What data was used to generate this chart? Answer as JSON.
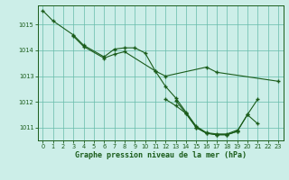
{
  "title": "Graphe pression niveau de la mer (hPa)",
  "bg_color": "#cceee8",
  "line_color": "#1a5c1a",
  "grid_color": "#66bbaa",
  "xlim": [
    -0.5,
    23.5
  ],
  "ylim": [
    1010.5,
    1015.75
  ],
  "yticks": [
    1011,
    1012,
    1013,
    1014,
    1015
  ],
  "xticks": [
    0,
    1,
    2,
    3,
    4,
    5,
    6,
    7,
    8,
    9,
    10,
    11,
    12,
    13,
    14,
    15,
    16,
    17,
    18,
    19,
    20,
    21,
    22,
    23
  ],
  "s1_x": [
    0,
    1,
    3,
    4,
    6,
    7,
    8,
    9,
    10,
    11,
    12,
    16,
    17,
    23
  ],
  "s1_y": [
    1015.55,
    1015.15,
    1014.6,
    1014.2,
    1013.75,
    1014.05,
    1014.1,
    1014.1,
    1013.9,
    1013.2,
    1013.0,
    1013.35,
    1013.15,
    1012.8
  ],
  "s2_x": [
    3,
    4,
    6,
    7,
    8,
    11,
    12,
    13,
    14,
    15,
    16,
    17,
    18,
    19
  ],
  "s2_y": [
    1014.55,
    1014.15,
    1013.7,
    1013.85,
    1013.95,
    1013.2,
    1012.6,
    1012.15,
    1011.6,
    1011.05,
    1010.8,
    1010.75,
    1010.75,
    1010.9
  ],
  "s3_x": [
    12,
    13,
    14,
    15,
    16,
    17,
    18,
    19,
    20,
    21
  ],
  "s3_y": [
    1012.1,
    1011.85,
    1011.55,
    1011.0,
    1010.78,
    1010.72,
    1010.72,
    1010.85,
    1011.5,
    1011.15
  ],
  "s4_x": [
    13,
    14,
    15,
    16,
    17,
    18,
    19,
    20,
    21
  ],
  "s4_y": [
    1012.05,
    1011.55,
    1011.0,
    1010.78,
    1010.72,
    1010.72,
    1010.85,
    1011.5,
    1012.1
  ]
}
